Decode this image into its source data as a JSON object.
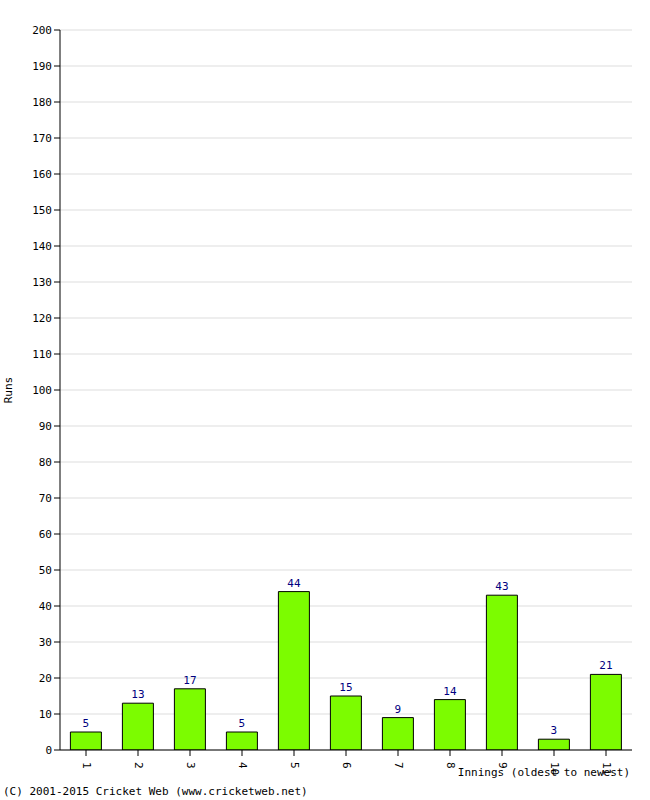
{
  "chart_data": {
    "type": "bar",
    "categories": [
      "1",
      "2",
      "3",
      "4",
      "5",
      "6",
      "7",
      "8",
      "9",
      "10",
      "11"
    ],
    "values": [
      5,
      13,
      17,
      5,
      44,
      15,
      9,
      14,
      43,
      3,
      21
    ],
    "color": "#7cfc00",
    "ylim": [
      0,
      200
    ],
    "yticks": [
      0,
      10,
      20,
      30,
      40,
      50,
      60,
      70,
      80,
      90,
      100,
      110,
      120,
      130,
      140,
      150,
      160,
      170,
      180,
      190,
      200
    ],
    "grid": true,
    "data_labels": true,
    "x_label": "Innings (oldest to newest)",
    "y_label": "Runs",
    "annotations": [
      "(C) 2001-2015 Cricket Web (www.cricketweb.net)"
    ]
  }
}
